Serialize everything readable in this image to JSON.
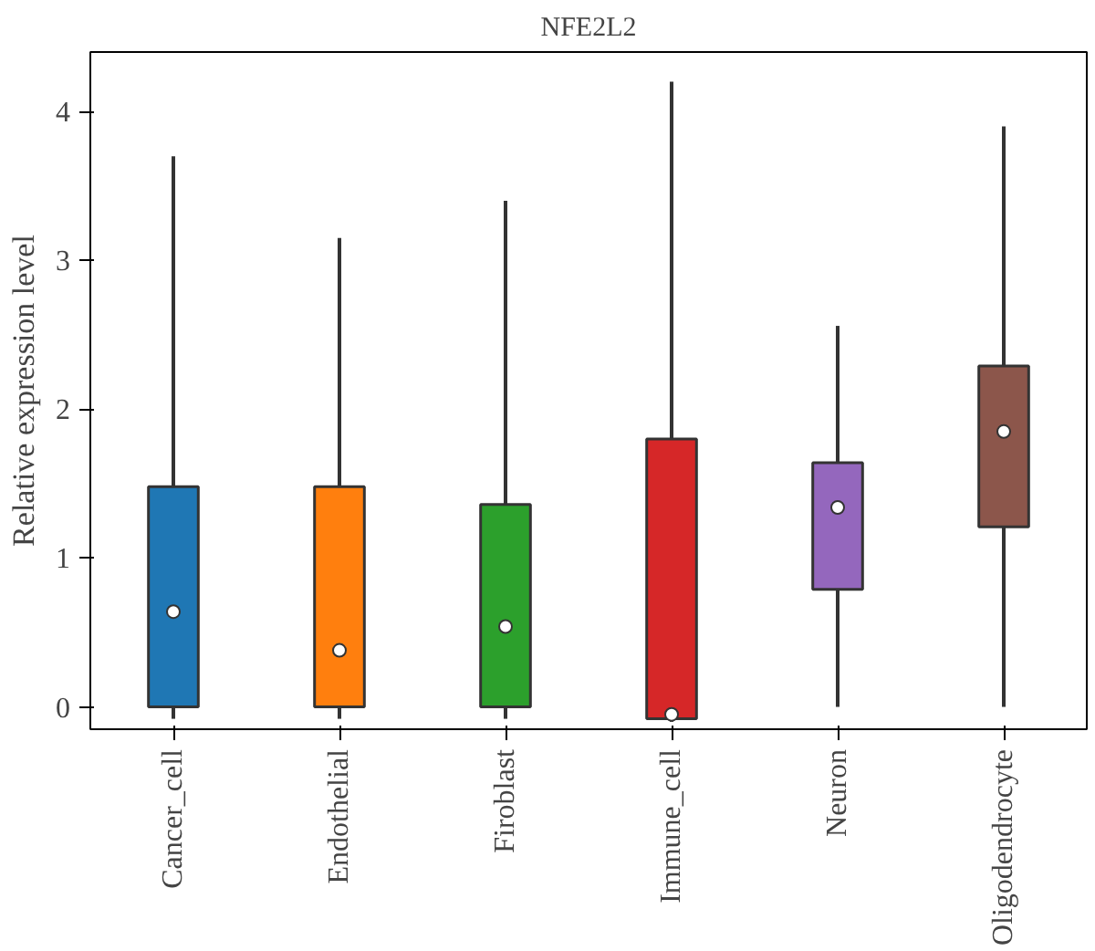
{
  "chart_data": {
    "type": "box",
    "title": "NFE2L2",
    "ylabel": "Relative expression level",
    "categories": [
      "Cancer_cell",
      "Endothelial",
      "Firoblast",
      "Immune_cell",
      "Neuron",
      "Oligodendrocyte"
    ],
    "colors": [
      "#1f77b4",
      "#ff7f0e",
      "#2ca02c",
      "#d62728",
      "#9467bd",
      "#8c564b"
    ],
    "boxes": [
      {
        "low": -0.08,
        "q1": 0,
        "median": 0.64,
        "q3": 1.48,
        "high": 3.7
      },
      {
        "low": -0.08,
        "q1": 0,
        "median": 0.38,
        "q3": 1.48,
        "high": 3.15
      },
      {
        "low": -0.08,
        "q1": 0,
        "median": 0.54,
        "q3": 1.36,
        "high": 3.4
      },
      {
        "low": -0.1,
        "q1": -0.08,
        "median": -0.05,
        "q3": 1.8,
        "high": 4.2
      },
      {
        "low": 0,
        "q1": 0.79,
        "median": 1.34,
        "q3": 1.64,
        "high": 2.56
      },
      {
        "low": 0,
        "q1": 1.21,
        "median": 1.85,
        "q3": 2.29,
        "high": 3.9
      }
    ],
    "ylim": [
      -0.15,
      4.4
    ],
    "yticks": [
      0,
      1,
      2,
      3,
      4
    ],
    "grid": false
  }
}
